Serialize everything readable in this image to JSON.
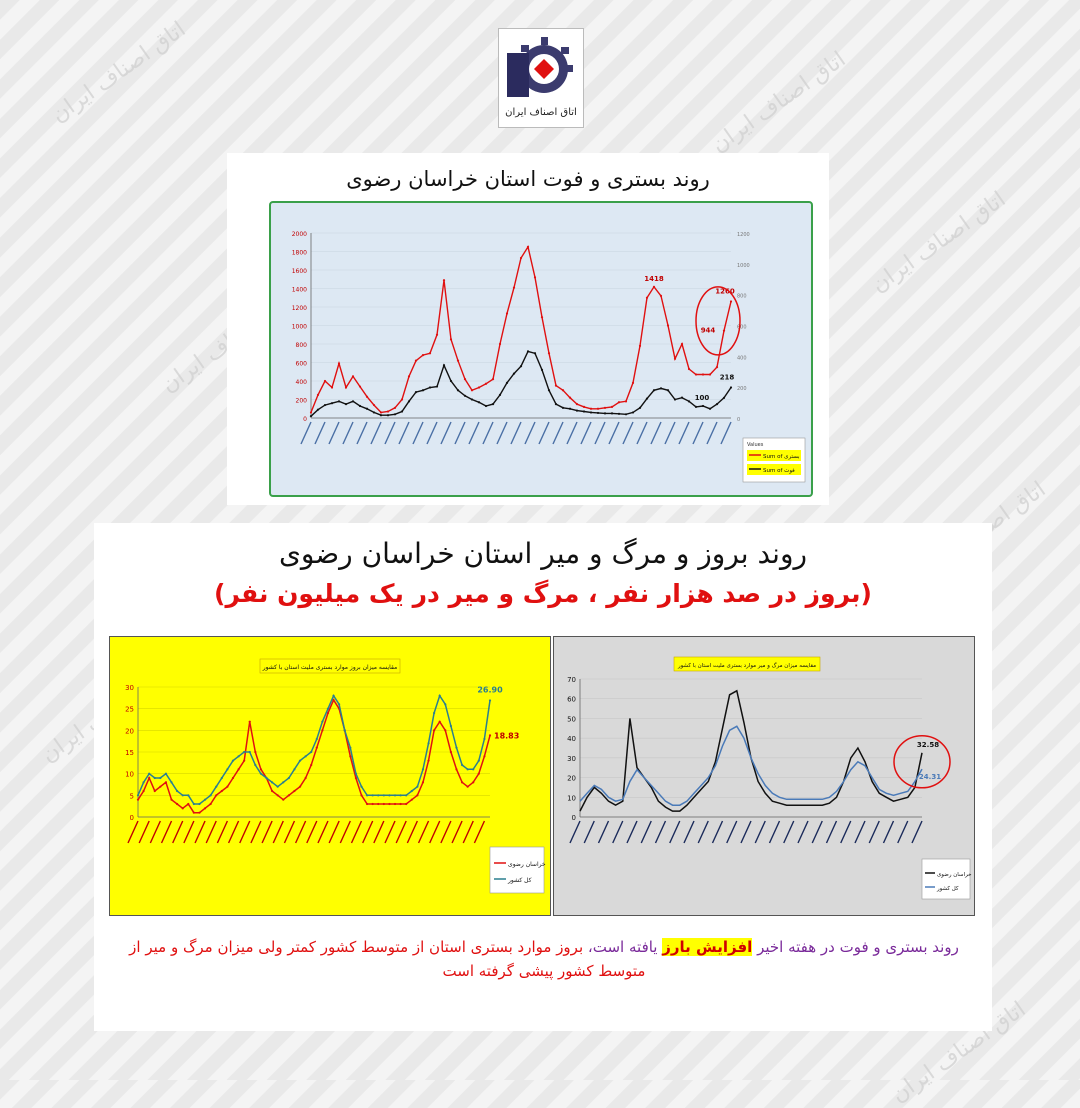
{
  "header": {
    "logo_text": "اتاق اصناف ایران"
  },
  "panel1": {
    "title": "روند بستری و فوت استان خراسان رضوی"
  },
  "panel2": {
    "title": "روند بروز و مرگ و میر استان خراسان رضوی",
    "subtitle": "(بروز در صد هزار نفر ، مرگ و میر در یک میلیون نفر)"
  },
  "caption": {
    "part1": "روند بستری و فوت در هفته اخیر",
    "highlight": "افزایش بارز",
    "part2": "یافته است،",
    "part3": "بروز موارد بستری استان از متوسط کشور کمتر ولی میزان مرگ و میر از متوسط کشور پیشی گرفته است"
  },
  "colors": {
    "red": "#e01010",
    "black": "#111111",
    "teal": "#2a7f8f",
    "blue": "#4a7ab8",
    "green_border": "#3aa04a"
  },
  "chart_data": [
    {
      "type": "line",
      "x_first": "1398 هفته 2 اسفند",
      "x_last": "1400 هفته آخر تیر",
      "ylim": [
        0,
        2000
      ],
      "yticks": [
        0,
        200,
        400,
        600,
        800,
        1000,
        1200,
        1400,
        1600,
        1800,
        2000
      ],
      "y2lim": [
        0,
        1200
      ],
      "y2ticks": [
        0,
        200,
        400,
        600,
        800,
        1000,
        1200
      ],
      "legend_title": "Values",
      "series": [
        {
          "name": "Sum of بستری",
          "color": "#e01010",
          "values": [
            60,
            250,
            400,
            330,
            590,
            330,
            450,
            340,
            230,
            140,
            60,
            70,
            110,
            200,
            450,
            620,
            680,
            700,
            900,
            1490,
            850,
            620,
            420,
            300,
            330,
            370,
            420,
            800,
            1130,
            1410,
            1730,
            1850,
            1520,
            1090,
            700,
            350,
            300,
            220,
            150,
            120,
            100,
            100,
            110,
            120,
            170,
            180,
            380,
            780,
            1300,
            1418,
            1320,
            1000,
            640,
            800,
            530,
            470,
            470,
            470,
            550,
            944,
            1260
          ]
        },
        {
          "name": "Sum of فوت",
          "color": "#111111",
          "values": [
            20,
            90,
            140,
            160,
            180,
            150,
            180,
            130,
            100,
            60,
            30,
            30,
            40,
            70,
            180,
            280,
            300,
            330,
            340,
            570,
            400,
            300,
            240,
            200,
            170,
            130,
            150,
            250,
            380,
            480,
            560,
            720,
            700,
            520,
            300,
            150,
            110,
            100,
            80,
            70,
            60,
            55,
            50,
            50,
            45,
            40,
            60,
            110,
            210,
            300,
            320,
            300,
            200,
            220,
            180,
            120,
            130,
            100,
            150,
            218,
            330
          ]
        }
      ],
      "annotations": [
        "1418",
        "1260",
        "944",
        "218",
        "100"
      ]
    },
    {
      "type": "line",
      "title": "مقایسه میزان بروز موارد بستری ملیت استان با کشور",
      "ylim": [
        0,
        30
      ],
      "yticks": [
        0,
        5,
        10,
        15,
        20,
        25,
        30
      ],
      "series": [
        {
          "name": "خراسان رضوی",
          "color": "#e01010",
          "values": [
            4,
            6,
            9,
            6,
            7,
            8,
            4,
            3,
            2,
            3,
            1,
            1,
            2,
            3,
            5,
            6,
            7,
            9,
            11,
            13,
            22,
            15,
            11,
            9,
            6,
            5,
            4,
            5,
            6,
            7,
            9,
            12,
            16,
            20,
            24,
            27,
            25,
            20,
            14,
            9,
            5,
            3,
            3,
            3,
            3,
            3,
            3,
            3,
            3,
            4,
            5,
            8,
            13,
            20,
            22,
            20,
            15,
            11,
            8,
            7,
            8,
            10,
            14,
            18.83
          ]
        },
        {
          "name": "کل کشور",
          "color": "#2a7f8f",
          "values": [
            5,
            8,
            10,
            9,
            9,
            10,
            8,
            6,
            5,
            5,
            3,
            3,
            4,
            5,
            7,
            9,
            11,
            13,
            14,
            15,
            15,
            12,
            10,
            9,
            8,
            7,
            8,
            9,
            11,
            13,
            14,
            15,
            18,
            22,
            25,
            28,
            26,
            20,
            16,
            10,
            7,
            5,
            5,
            5,
            5,
            5,
            5,
            5,
            5,
            6,
            7,
            11,
            17,
            24,
            28,
            26,
            21,
            16,
            12,
            11,
            11,
            13,
            18,
            26.9
          ]
        }
      ],
      "annotations": [
        "26.90",
        "18.83"
      ]
    },
    {
      "type": "line",
      "title": "مقایسه میزان مرگ و میر موارد بستری ملیت استان با کشور",
      "ylim": [
        0,
        70
      ],
      "yticks": [
        0,
        10,
        20,
        30,
        40,
        50,
        60,
        70
      ],
      "series": [
        {
          "name": "خراسان رضوی",
          "color": "#111111",
          "values": [
            3,
            10,
            15,
            12,
            8,
            6,
            8,
            50,
            25,
            20,
            15,
            8,
            5,
            3,
            3,
            6,
            10,
            14,
            18,
            28,
            45,
            62,
            64,
            48,
            30,
            18,
            12,
            8,
            7,
            6,
            6,
            6,
            6,
            6,
            6,
            7,
            10,
            18,
            30,
            35,
            28,
            18,
            12,
            10,
            8,
            9,
            10,
            15,
            32.58
          ]
        },
        {
          "name": "کل کشور",
          "color": "#4a7ab8",
          "values": [
            8,
            12,
            16,
            14,
            10,
            8,
            9,
            18,
            24,
            20,
            16,
            12,
            8,
            6,
            6,
            8,
            12,
            16,
            20,
            26,
            36,
            44,
            46,
            40,
            30,
            22,
            16,
            12,
            10,
            9,
            9,
            9,
            9,
            9,
            9,
            10,
            13,
            18,
            24,
            28,
            26,
            20,
            14,
            12,
            11,
            12,
            13,
            18,
            24.31
          ]
        }
      ],
      "annotations": [
        "32.58",
        "24.31"
      ]
    }
  ]
}
